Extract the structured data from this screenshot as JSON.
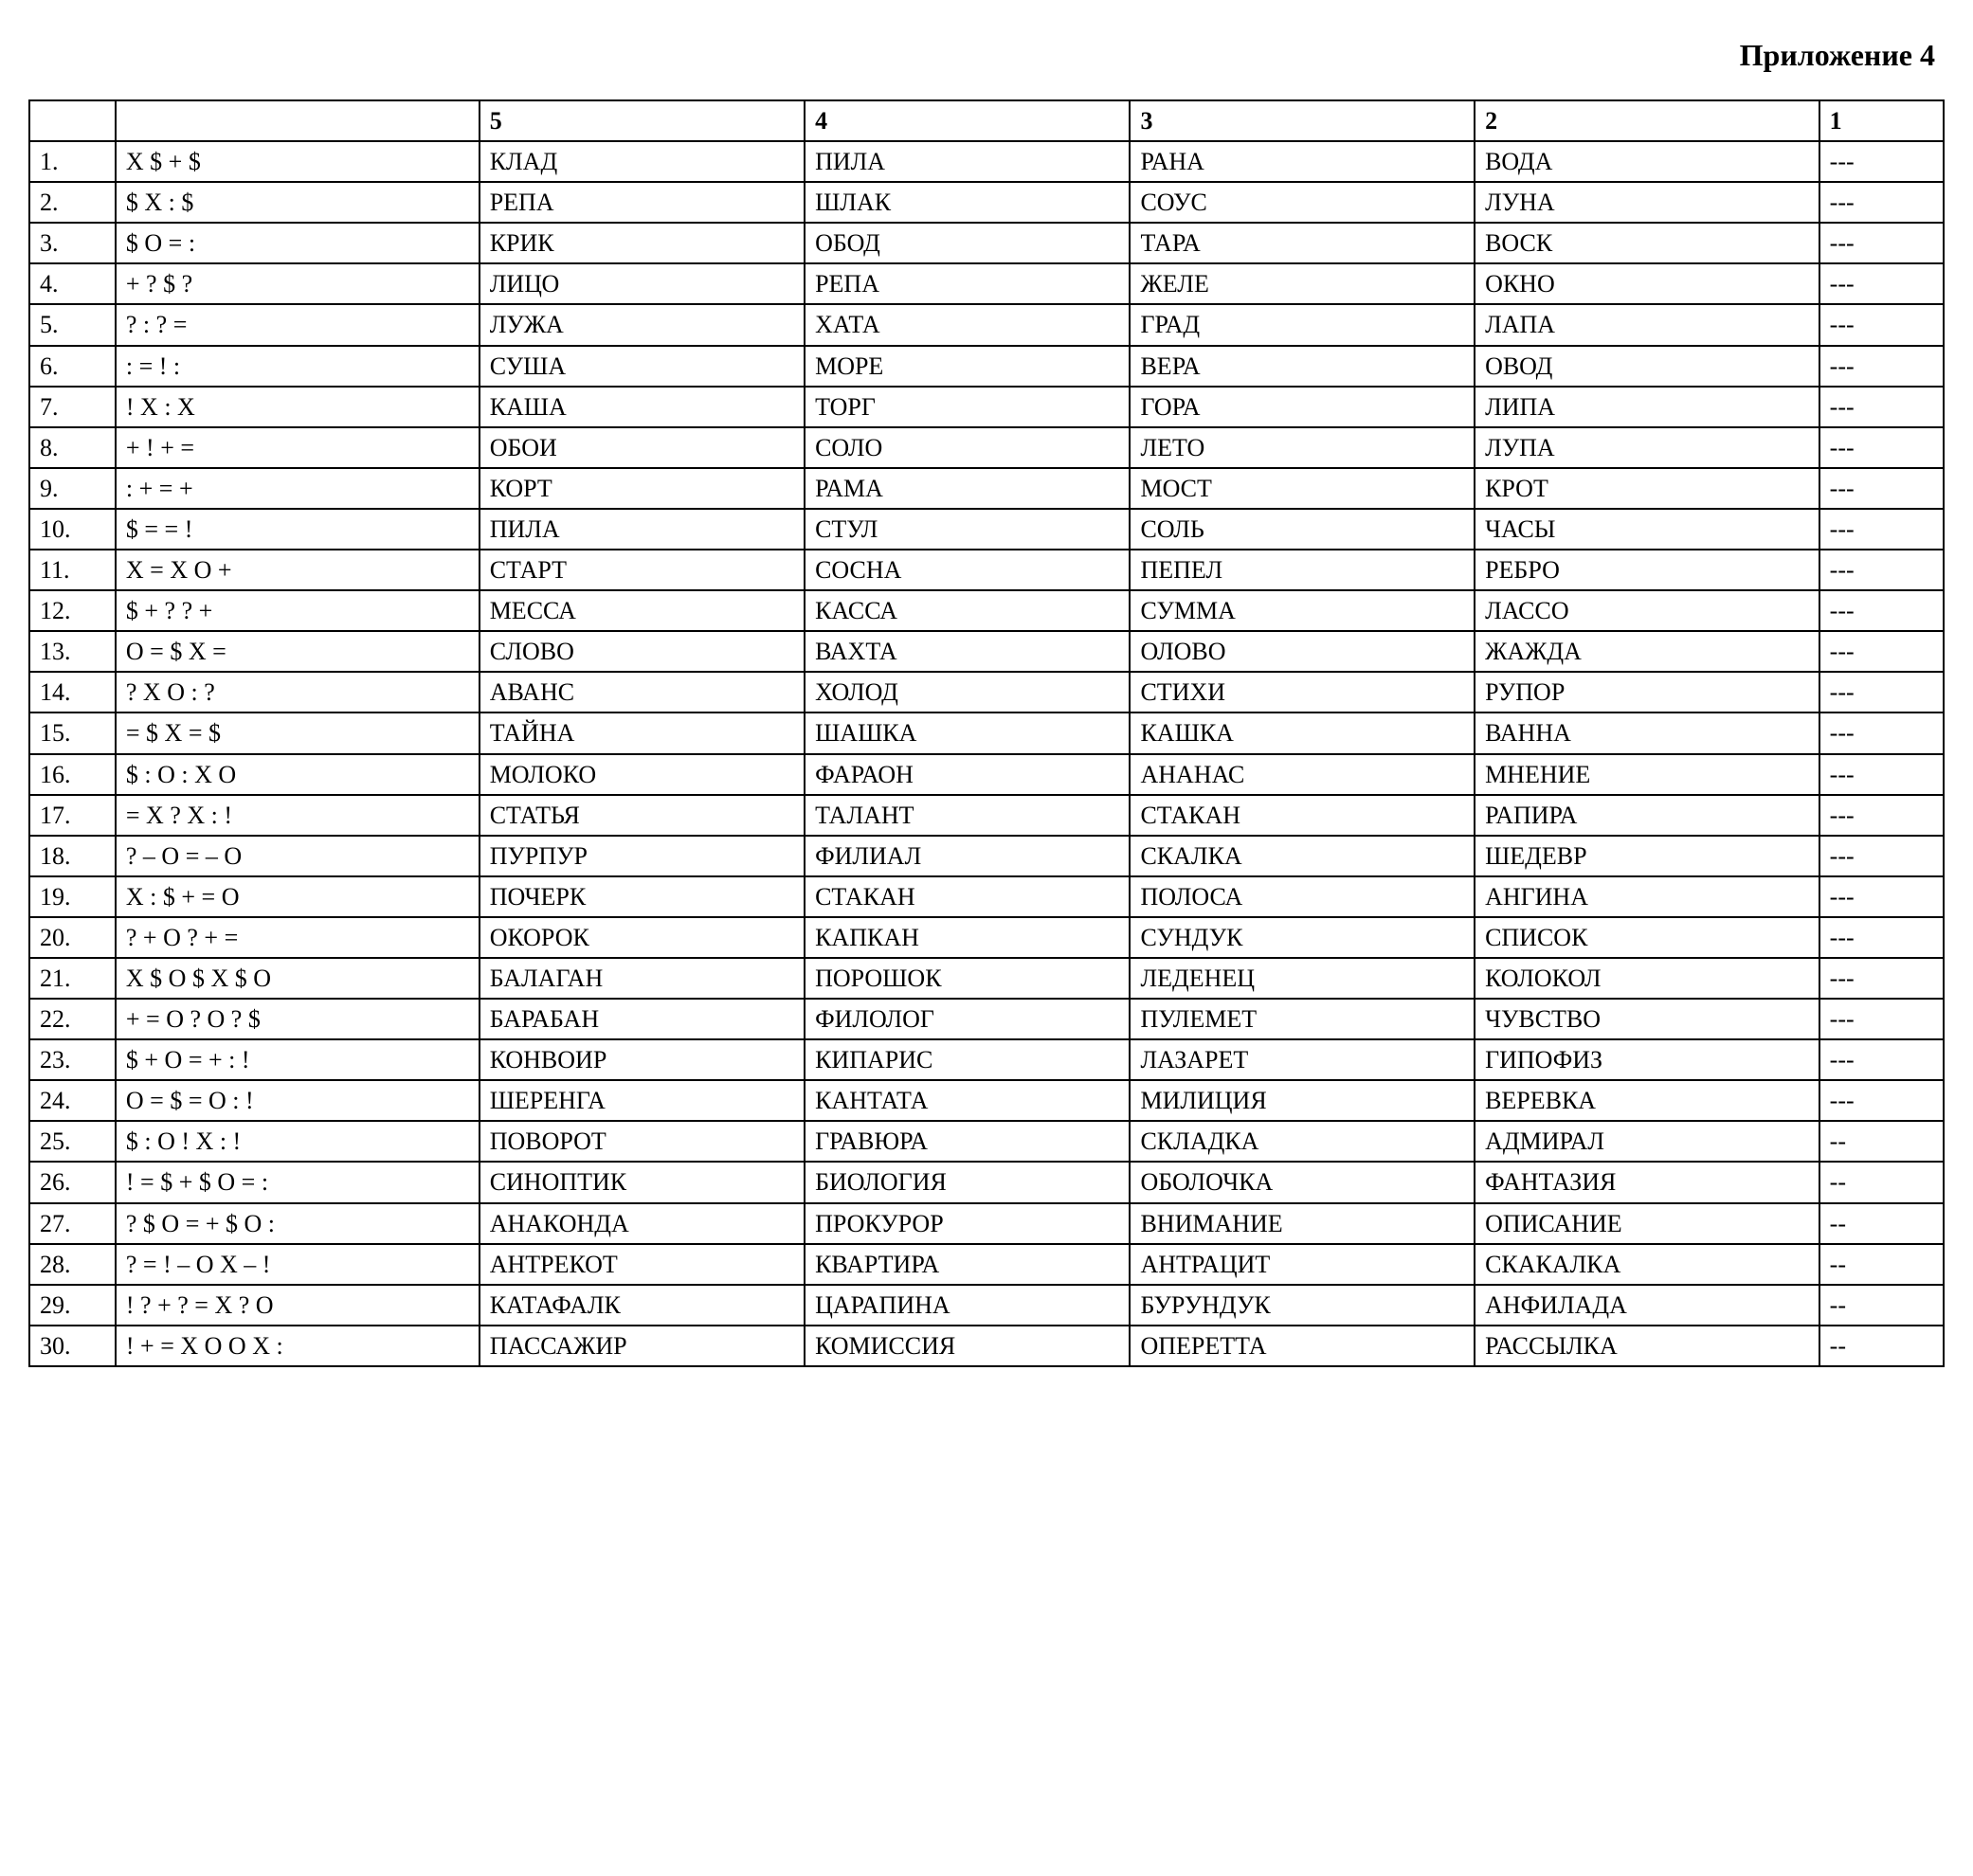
{
  "header": "Приложение 4",
  "columns": [
    "",
    "",
    "5",
    "4",
    "3",
    "2",
    "1"
  ],
  "rows": [
    [
      "1.",
      "X $ + $",
      "КЛАД",
      "ПИЛА",
      "РАНА",
      "ВОДА",
      "---"
    ],
    [
      "2.",
      "$  X : $",
      "РЕПА",
      "ШЛАК",
      "СОУС",
      "ЛУНА",
      "---"
    ],
    [
      "3.",
      "$  O = :",
      "КРИК",
      "ОБОД",
      "ТАРА",
      "ВОСК",
      "---"
    ],
    [
      "4.",
      "+ ? $ ?",
      "ЛИЦО",
      "РЕПА",
      "ЖЕЛЕ",
      "ОКНО",
      "---"
    ],
    [
      "5.",
      "? : ? =",
      "ЛУЖА",
      "ХАТА",
      "ГРАД",
      "ЛАПА",
      "---"
    ],
    [
      "6.",
      ": = ! :",
      "СУША",
      "МОРЕ",
      "ВЕРА",
      "ОВОД",
      "---"
    ],
    [
      "7.",
      "! X : X",
      "КАША",
      "ТОРГ",
      "ГОРА",
      "ЛИПА",
      "---"
    ],
    [
      "8.",
      "+ ! + =",
      "ОБОИ",
      "СОЛО",
      "ЛЕТО",
      "ЛУПА",
      "---"
    ],
    [
      "9.",
      ": + = +",
      "КОРТ",
      "РАМА",
      "МОСТ",
      "КРОТ",
      "---"
    ],
    [
      "10.",
      "$ = = !",
      "ПИЛА",
      "СТУЛ",
      "СОЛЬ",
      "ЧАСЫ",
      "---"
    ],
    [
      "11.",
      "X = X  O +",
      "СТАРТ",
      "СОСНА",
      "ПЕПЕЛ",
      "РЕБРО",
      "---"
    ],
    [
      "12.",
      "$ + ? ? +",
      "МЕССА",
      "КАССА",
      "СУММА",
      "ЛАССО",
      "---"
    ],
    [
      "13.",
      "O = $ X =",
      "СЛОВО",
      "ВАХТА",
      "ОЛОВО",
      "ЖАЖДА",
      "---"
    ],
    [
      "14.",
      "? X O : ?",
      "АВАНС",
      "ХОЛОД",
      "СТИХИ",
      "РУПОР",
      "---"
    ],
    [
      "15.",
      "= $ X = $",
      "ТАЙНА",
      "ШАШКА",
      "КАШКА",
      " ВАННА",
      "---"
    ],
    [
      "16.",
      "$ : O : X O",
      "МОЛОКО",
      "ФАРАОН",
      "АНАНАС",
      "МНЕНИЕ",
      "---"
    ],
    [
      "17.",
      "= X ? X : !",
      "СТАТЬЯ",
      "ТАЛАНТ",
      "СТАКАН",
      "РАПИРА",
      "---"
    ],
    [
      "18.",
      "? – O = –  O",
      "ПУРПУР",
      "ФИЛИАЛ",
      "СКАЛКА",
      "ШЕДЕВР",
      "---"
    ],
    [
      "19.",
      "X : $ + = O",
      "ПОЧЕРК",
      "СТАКАН",
      "ПОЛОСА",
      "АНГИНА",
      "---"
    ],
    [
      "20.",
      "? + O ? + =",
      "ОКОРОК",
      "КАПКАН",
      "СУНДУК",
      "СПИСОК",
      "---"
    ],
    [
      "21.",
      "X $ O $ X $ O",
      "БАЛАГАН",
      "ПОРОШОК",
      "ЛЕДЕНЕЦ",
      "КОЛОКОЛ",
      "---"
    ],
    [
      "22.",
      "+ = O ? O ? $",
      "БАРАБАН",
      "ФИЛОЛОГ",
      "ПУЛЕМЕТ",
      "ЧУВСТВО",
      "---"
    ],
    [
      "23.",
      "$ + O = + : !",
      "КОНВОИР",
      "КИПАРИС",
      "ЛАЗАРЕТ",
      "ГИПОФИЗ",
      "---"
    ],
    [
      "24.",
      "O = $ = O : !",
      "ШЕРЕНГА",
      "КАНТАТА",
      "МИЛИЦИЯ",
      "ВЕРЕВКА",
      "---"
    ],
    [
      "25.",
      "$ : O ! X : !",
      "ПОВОРОТ",
      "ГРАВЮРА",
      "СКЛАДКА",
      "АДМИРАЛ",
      "--"
    ],
    [
      "26.",
      "! = $ + $ O = :",
      "СИНОПТИК",
      "БИОЛОГИЯ",
      "ОБОЛОЧКА",
      "ФАНТАЗИЯ",
      "--"
    ],
    [
      "27.",
      "? $ O = + $ O :",
      "АНАКОНДА",
      "ПРОКУРОР",
      " ВНИМАНИЕ",
      "ОПИСАНИЕ",
      "--"
    ],
    [
      "28.",
      "? = ! – O X – !",
      "АНТРЕКОТ",
      "КВАРТИРА",
      " АНТРАЦИТ",
      "СКАКАЛКА",
      "--"
    ],
    [
      "29.",
      "! ? + ? = X ? O",
      "КАТАФАЛК",
      "ЦАРАПИНА",
      "БУРУНДУК",
      "АНФИЛАДА",
      "--"
    ],
    [
      "30.",
      "! + = X O O  X :",
      "ПАССАЖИР",
      "КОМИССИЯ",
      "ОПЕРЕТТА",
      "РАССЫЛКА",
      "--"
    ]
  ]
}
